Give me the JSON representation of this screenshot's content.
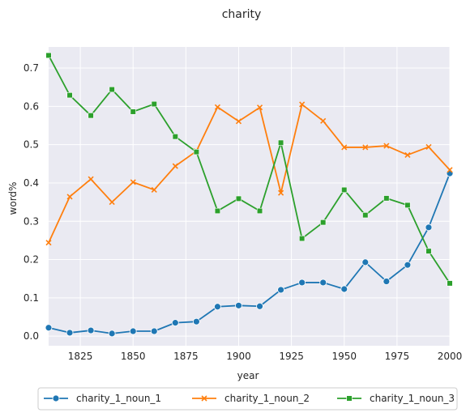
{
  "chart_data": {
    "type": "line",
    "title": "charity",
    "xlabel": "year",
    "ylabel": "word%",
    "xlim": [
      1810,
      2000
    ],
    "ylim": [
      -0.025,
      0.755
    ],
    "xticks": [
      1825,
      1850,
      1875,
      1900,
      1925,
      1950,
      1975,
      2000
    ],
    "yticks": [
      0.0,
      0.1,
      0.2,
      0.3,
      0.4,
      0.5,
      0.6,
      0.7
    ],
    "grid": true,
    "legend_position": "bottom",
    "x": [
      1810,
      1820,
      1830,
      1840,
      1850,
      1860,
      1870,
      1880,
      1890,
      1900,
      1910,
      1920,
      1930,
      1940,
      1950,
      1960,
      1970,
      1980,
      1990,
      2000
    ],
    "series": [
      {
        "name": "charity_1_noun_1",
        "color": "#1f77b4",
        "marker": "circle",
        "values": [
          0.022,
          0.009,
          0.015,
          0.007,
          0.013,
          0.013,
          0.035,
          0.038,
          0.077,
          0.08,
          0.078,
          0.121,
          0.14,
          0.14,
          0.123,
          0.193,
          0.143,
          0.186,
          0.284,
          0.425
        ]
      },
      {
        "name": "charity_1_noun_2",
        "color": "#ff7f0e",
        "marker": "x",
        "values": [
          0.244,
          0.364,
          0.41,
          0.35,
          0.402,
          0.382,
          0.444,
          0.483,
          0.598,
          0.561,
          0.597,
          0.374,
          0.605,
          0.562,
          0.493,
          0.493,
          0.497,
          0.473,
          0.494,
          0.434
        ]
      },
      {
        "name": "charity_1_noun_3",
        "color": "#2ca02c",
        "marker": "square",
        "values": [
          0.733,
          0.629,
          0.576,
          0.644,
          0.586,
          0.606,
          0.521,
          0.481,
          0.327,
          0.359,
          0.327,
          0.505,
          0.255,
          0.297,
          0.382,
          0.316,
          0.36,
          0.342,
          0.222,
          0.138
        ]
      }
    ]
  }
}
